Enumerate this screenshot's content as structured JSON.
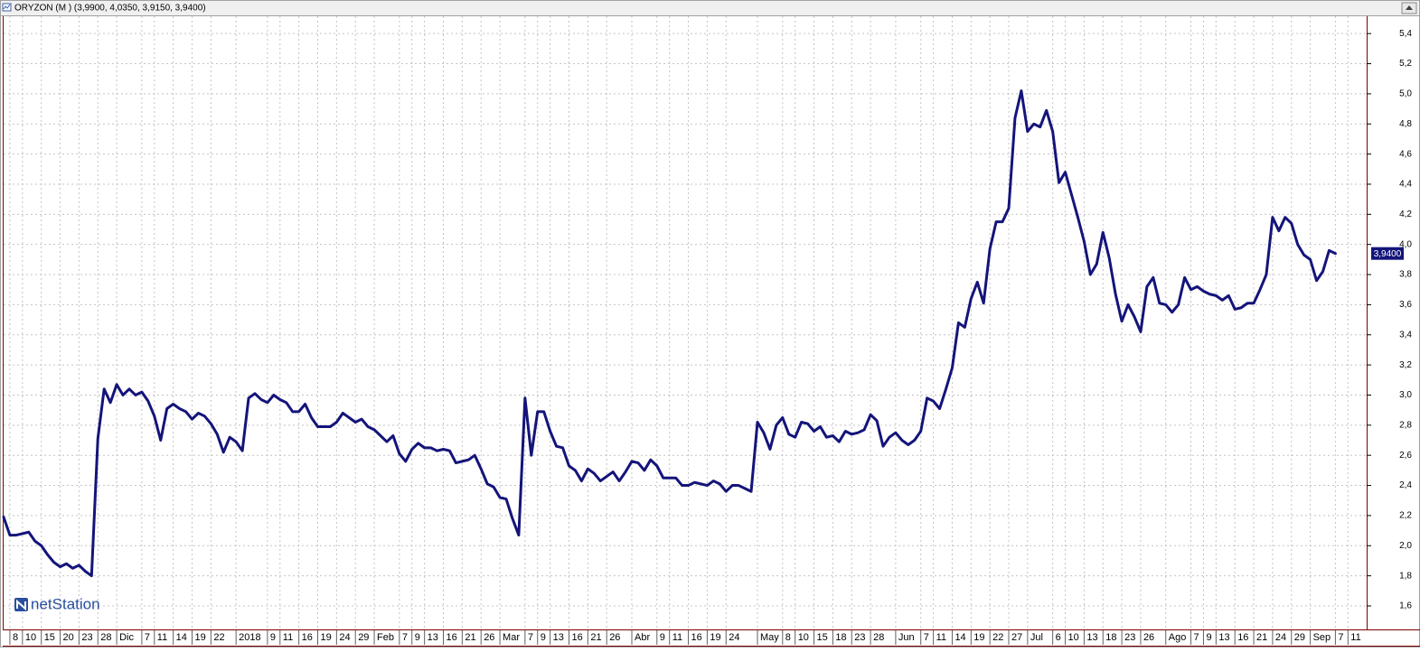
{
  "chart_data": {
    "type": "line",
    "title": "ORYZON (M ) (3,9900, 4,0350, 3,9150, 3,9400)",
    "watermark": "netStation",
    "color": "#14147a",
    "grid": true,
    "y_axis_side": "right",
    "categories": [
      null,
      "8",
      null,
      "10",
      null,
      null,
      "15",
      null,
      null,
      "20",
      null,
      null,
      "23",
      null,
      null,
      "28",
      null,
      null,
      "Dic",
      null,
      null,
      null,
      "7",
      null,
      "11",
      null,
      null,
      "14",
      null,
      null,
      "19",
      null,
      null,
      "22",
      null,
      null,
      null,
      "2018",
      null,
      null,
      null,
      null,
      "9",
      null,
      "11",
      null,
      null,
      "16",
      null,
      null,
      "19",
      null,
      null,
      "24",
      null,
      null,
      "29",
      null,
      null,
      "Feb",
      null,
      null,
      null,
      "7",
      null,
      "9",
      null,
      "13",
      null,
      null,
      "16",
      null,
      null,
      "21",
      null,
      null,
      "26",
      null,
      null,
      "Mar",
      null,
      null,
      null,
      "7",
      null,
      "9",
      null,
      "13",
      null,
      null,
      "16",
      null,
      null,
      "21",
      null,
      null,
      "26",
      null,
      null,
      null,
      "Abr",
      null,
      null,
      null,
      "9",
      null,
      "11",
      null,
      null,
      "16",
      null,
      null,
      "19",
      null,
      null,
      "24",
      null,
      null,
      null,
      null,
      "May",
      null,
      null,
      null,
      "8",
      null,
      "10",
      null,
      null,
      "15",
      null,
      null,
      "18",
      null,
      null,
      "23",
      null,
      null,
      "28",
      null,
      null,
      null,
      "Jun",
      null,
      null,
      null,
      "7",
      null,
      "11",
      null,
      null,
      "14",
      null,
      null,
      "19",
      null,
      null,
      "22",
      null,
      null,
      "27",
      null,
      null,
      "Jul",
      null,
      null,
      null,
      "6",
      null,
      "10",
      null,
      null,
      "13",
      null,
      null,
      "18",
      null,
      null,
      "23",
      null,
      null,
      "26",
      null,
      null,
      null,
      "Ago",
      null,
      null,
      null,
      "7",
      null,
      "9",
      null,
      "13",
      null,
      null,
      "16",
      null,
      null,
      "21",
      null,
      null,
      "24",
      null,
      null,
      "29",
      null,
      null,
      "Sep",
      null,
      null,
      null,
      "7",
      null,
      "11"
    ],
    "values": [
      2.19,
      2.07,
      2.07,
      2.08,
      2.09,
      2.03,
      2.0,
      1.94,
      1.89,
      1.86,
      1.88,
      1.85,
      1.87,
      1.83,
      1.8,
      2.71,
      3.04,
      2.95,
      3.07,
      3.0,
      3.04,
      3.0,
      3.02,
      2.96,
      2.86,
      2.7,
      2.91,
      2.94,
      2.91,
      2.89,
      2.84,
      2.88,
      2.86,
      2.81,
      2.74,
      2.62,
      2.72,
      2.69,
      2.63,
      2.98,
      3.01,
      2.97,
      2.95,
      3.0,
      2.97,
      2.95,
      2.89,
      2.89,
      2.94,
      2.85,
      2.79,
      2.79,
      2.79,
      2.82,
      2.88,
      2.85,
      2.82,
      2.84,
      2.79,
      2.77,
      2.73,
      2.69,
      2.73,
      2.61,
      2.56,
      2.64,
      2.68,
      2.65,
      2.65,
      2.63,
      2.64,
      2.63,
      2.55,
      2.56,
      2.57,
      2.6,
      2.51,
      2.41,
      2.39,
      2.32,
      2.31,
      2.18,
      2.07,
      2.98,
      2.6,
      2.89,
      2.89,
      2.76,
      2.66,
      2.65,
      2.53,
      2.5,
      2.43,
      2.51,
      2.48,
      2.43,
      2.46,
      2.49,
      2.43,
      2.49,
      2.56,
      2.55,
      2.5,
      2.57,
      2.53,
      2.45,
      2.45,
      2.45,
      2.4,
      2.4,
      2.42,
      2.41,
      2.4,
      2.43,
      2.41,
      2.36,
      2.4,
      2.4,
      2.38,
      2.36,
      2.82,
      2.75,
      2.64,
      2.8,
      2.85,
      2.74,
      2.72,
      2.82,
      2.81,
      2.76,
      2.79,
      2.72,
      2.73,
      2.69,
      2.76,
      2.74,
      2.75,
      2.77,
      2.87,
      2.83,
      2.66,
      2.72,
      2.75,
      2.7,
      2.67,
      2.7,
      2.76,
      2.98,
      2.96,
      2.91,
      3.04,
      3.18,
      3.48,
      3.45,
      3.64,
      3.75,
      3.61,
      3.97,
      4.15,
      4.15,
      4.24,
      4.84,
      5.02,
      4.75,
      4.8,
      4.78,
      4.89,
      4.75,
      4.41,
      4.48,
      4.33,
      4.18,
      4.02,
      3.8,
      3.87,
      4.08,
      3.91,
      3.67,
      3.49,
      3.6,
      3.52,
      3.42,
      3.72,
      3.78,
      3.61,
      3.6,
      3.55,
      3.6,
      3.78,
      3.7,
      3.72,
      3.69,
      3.67,
      3.66,
      3.63,
      3.66,
      3.57,
      3.58,
      3.61,
      3.61,
      3.7,
      3.8,
      4.18,
      4.09,
      4.18,
      4.14,
      4.0,
      3.93,
      3.9,
      3.76,
      3.82,
      3.96,
      3.94,
      null,
      null
    ],
    "last_price": {
      "value": 3.94,
      "label": "3,9400"
    },
    "ylim": [
      1.444,
      5.515
    ],
    "yticks": [
      {
        "value": 1.6,
        "label": "1,6"
      },
      {
        "value": 1.8,
        "label": "1,8"
      },
      {
        "value": 2.0,
        "label": "2,0"
      },
      {
        "value": 2.2,
        "label": "2,2"
      },
      {
        "value": 2.4,
        "label": "2,4"
      },
      {
        "value": 2.6,
        "label": "2,6"
      },
      {
        "value": 2.8,
        "label": "2,8"
      },
      {
        "value": 3.0,
        "label": "3,0"
      },
      {
        "value": 3.2,
        "label": "3,2"
      },
      {
        "value": 3.4,
        "label": "3,4"
      },
      {
        "value": 3.6,
        "label": "3,6"
      },
      {
        "value": 3.8,
        "label": "3,8"
      },
      {
        "value": 4.0,
        "label": "4,0"
      },
      {
        "value": 4.2,
        "label": "4,2"
      },
      {
        "value": 4.4,
        "label": "4,4"
      },
      {
        "value": 4.6,
        "label": "4,6"
      },
      {
        "value": 4.8,
        "label": "4,8"
      },
      {
        "value": 5.0,
        "label": "5,0"
      },
      {
        "value": 5.2,
        "label": "5,2"
      },
      {
        "value": 5.4,
        "label": "5,4"
      }
    ]
  }
}
